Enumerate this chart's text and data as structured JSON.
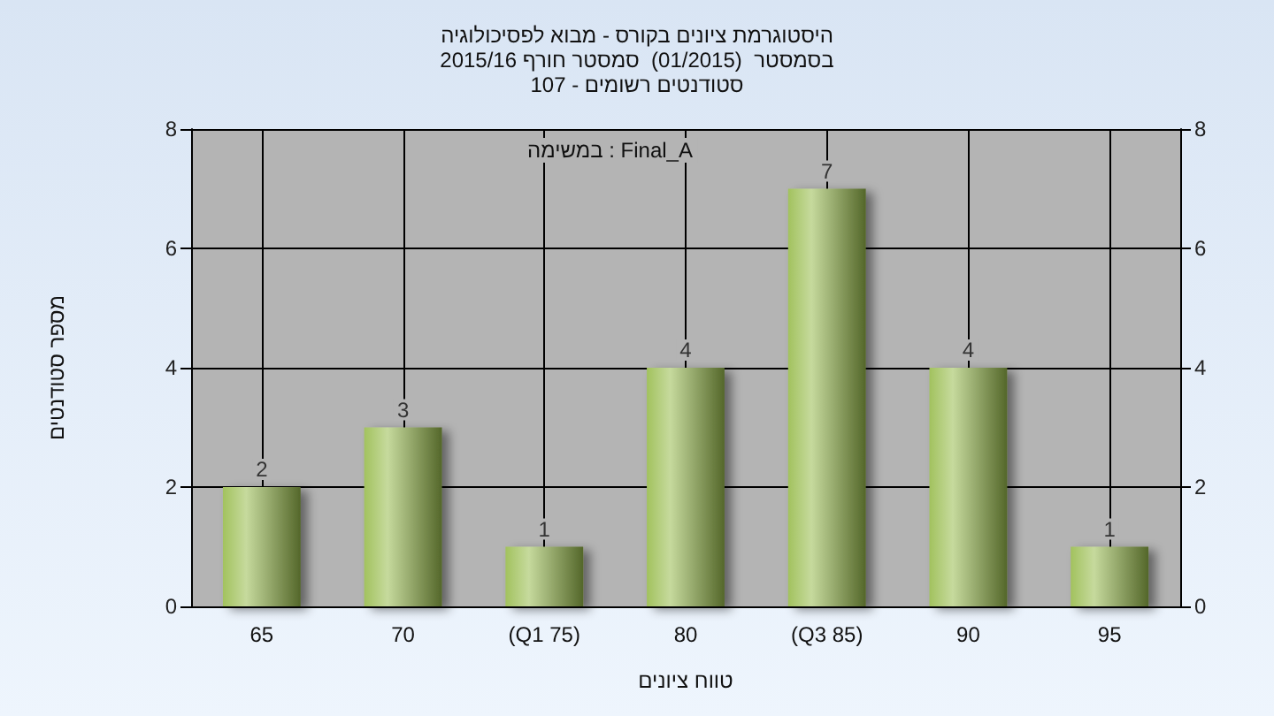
{
  "chart_data": {
    "type": "bar",
    "title": "היסטוגרמת ציונים בקורס - מבוא לפסיכולוגיה",
    "subtitle": "בסמסטר  (01/2015)  סמסטר חורף 2015/16\nסטודנטים רשומים - 107",
    "xlabel": "טווח ציונים",
    "ylabel": "מספר סטודנטים",
    "annotations": [
      "במשימה : Final_A"
    ],
    "categories": [
      "65",
      "70",
      "(Q1 75)",
      "80",
      "(Q3 85)",
      "90",
      "95"
    ],
    "series": [
      {
        "color": "#98bb4c",
        "values": [
          2,
          3,
          1,
          4,
          7,
          4,
          1
        ]
      }
    ],
    "ylim": [
      0,
      8
    ],
    "yticks": [
      0,
      2,
      4,
      6,
      8
    ],
    "y2lim": [
      0,
      8
    ],
    "y2ticks": [
      0,
      2,
      4,
      6,
      8
    ],
    "grid": true,
    "data_labels": true
  }
}
